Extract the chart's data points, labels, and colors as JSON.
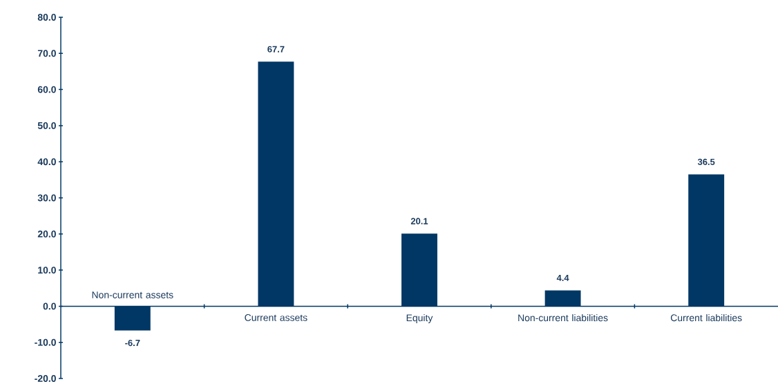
{
  "chart_data": {
    "type": "bar",
    "categories": [
      "Non-current assets",
      "Current assets",
      "Equity",
      "Non-current liabilities",
      "Current liabilities"
    ],
    "values": [
      -6.7,
      67.7,
      20.1,
      4.4,
      36.5
    ],
    "color": "#003764",
    "ylim": [
      -20,
      80
    ],
    "yticks": [
      {
        "value": -20,
        "label": "-20.0"
      },
      {
        "value": -10,
        "label": "-10.0"
      },
      {
        "value": 0,
        "label": "0.0"
      },
      {
        "value": 10,
        "label": "10.0"
      },
      {
        "value": 20,
        "label": "20.0"
      },
      {
        "value": 30,
        "label": "30.0"
      },
      {
        "value": 40,
        "label": "40.0"
      },
      {
        "value": 50,
        "label": "50.0"
      },
      {
        "value": 60,
        "label": "60.0"
      },
      {
        "value": 70,
        "label": "70.0"
      },
      {
        "value": 80,
        "label": "80.0"
      }
    ],
    "data_labels": true
  }
}
